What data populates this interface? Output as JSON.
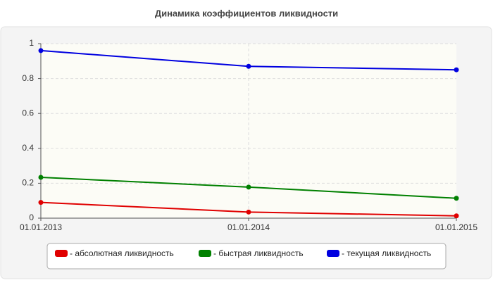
{
  "chart_data": {
    "type": "line",
    "title": "Динамика коэффициентов ликвидности",
    "categories": [
      "01.01.2013",
      "01.01.2014",
      "01.01.2015"
    ],
    "series": [
      {
        "name": "- абсолютная ликвидность",
        "color": "#e00000",
        "values": [
          0.09,
          0.035,
          0.013
        ]
      },
      {
        "name": "- быстрая ликвидность",
        "color": "#008000",
        "values": [
          0.234,
          0.178,
          0.114
        ]
      },
      {
        "name": "- текущая ликвидность",
        "color": "#0000e0",
        "values": [
          0.96,
          0.87,
          0.85
        ]
      }
    ],
    "ylim": [
      0,
      1
    ],
    "yticks": [
      0,
      0.2,
      0.4,
      0.6,
      0.8,
      1
    ],
    "grid": true,
    "legend": "bottom"
  }
}
